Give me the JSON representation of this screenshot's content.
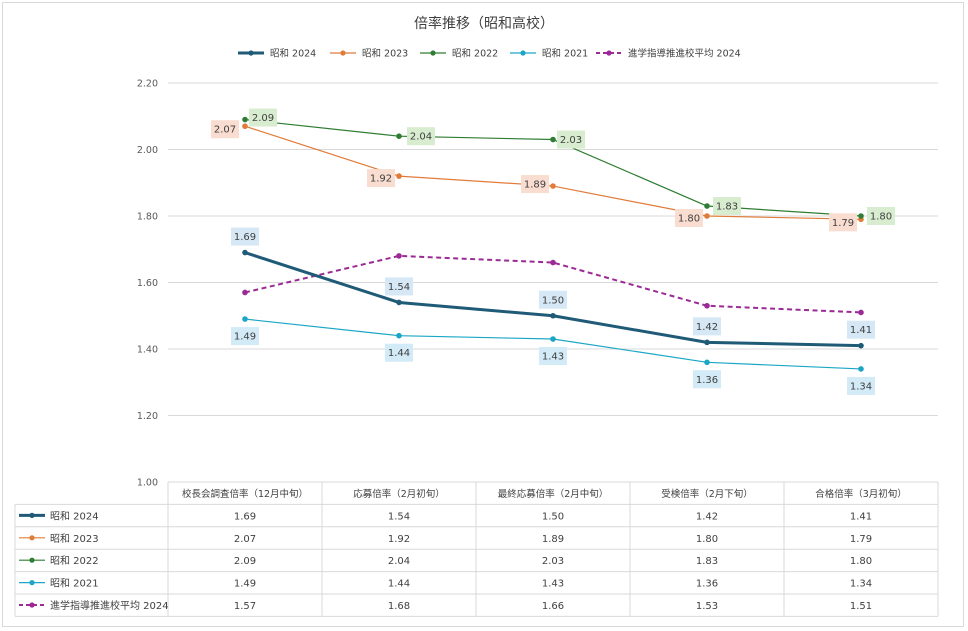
{
  "chart_data": {
    "type": "line",
    "title": "倍率推移（昭和高校）",
    "categories": [
      "校長会調査倍率（12月中旬）",
      "応募倍率（2月初旬）",
      "最終応募倍率（2月中旬）",
      "受検倍率（2月下旬）",
      "合格倍率（3月初旬）"
    ],
    "ylim": [
      1.0,
      2.2
    ],
    "yticks": [
      "1.00",
      "1.20",
      "1.40",
      "1.60",
      "1.80",
      "2.00",
      "2.20"
    ],
    "grid": true,
    "legend": "top",
    "data_table": true,
    "series": [
      {
        "name": "昭和 2024",
        "color": "#1f5a77",
        "style": "solid-thick",
        "values": [
          1.69,
          1.54,
          1.5,
          1.42,
          1.41
        ],
        "labels_shown": true,
        "label_bg": "#d6e8f5"
      },
      {
        "name": "昭和 2023",
        "color": "#e07b39",
        "style": "solid",
        "values": [
          2.07,
          1.92,
          1.89,
          1.8,
          1.79
        ],
        "labels_shown": true,
        "label_bg": "#f8ddd0"
      },
      {
        "name": "昭和 2022",
        "color": "#2e7d32",
        "style": "solid",
        "values": [
          2.09,
          2.04,
          2.03,
          1.83,
          1.8
        ],
        "labels_shown": true,
        "label_bg": "#d8edcf"
      },
      {
        "name": "昭和 2021",
        "color": "#1ba6c6",
        "style": "solid",
        "values": [
          1.49,
          1.44,
          1.43,
          1.36,
          1.34
        ],
        "labels_shown": true,
        "label_bg": "#d3eaf7"
      },
      {
        "name": "進学指導推進校平均 2024",
        "color": "#9b2a95",
        "style": "dashed",
        "values": [
          1.57,
          1.68,
          1.66,
          1.53,
          1.51
        ],
        "labels_shown": false,
        "label_bg": ""
      }
    ],
    "table_values": [
      [
        "1.69",
        "1.54",
        "1.50",
        "1.42",
        "1.41"
      ],
      [
        "2.07",
        "1.92",
        "1.89",
        "1.80",
        "1.79"
      ],
      [
        "2.09",
        "2.04",
        "2.03",
        "1.83",
        "1.80"
      ],
      [
        "1.49",
        "1.44",
        "1.43",
        "1.36",
        "1.34"
      ],
      [
        "1.57",
        "1.68",
        "1.66",
        "1.53",
        "1.51"
      ]
    ]
  }
}
